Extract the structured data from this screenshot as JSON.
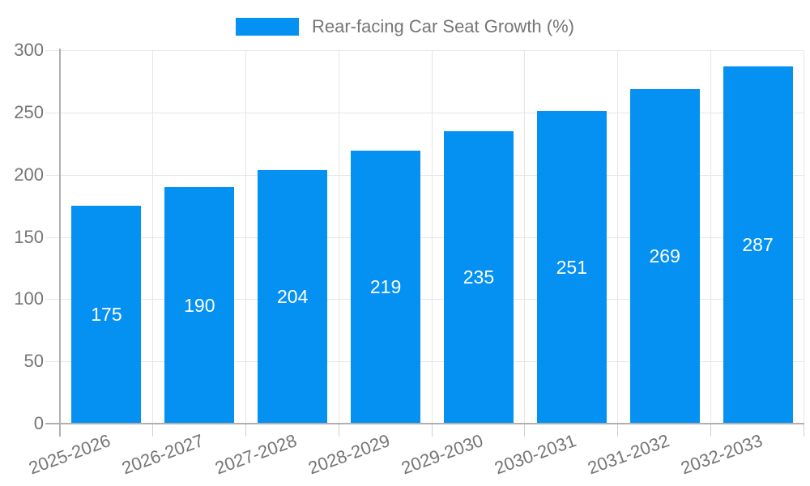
{
  "legend": {
    "label": "Rear-facing Car Seat Growth (%)"
  },
  "chart_data": {
    "type": "bar",
    "title": "Rear-facing Car Seat Growth (%)",
    "categories": [
      "2025-2026",
      "2026-2027",
      "2027-2028",
      "2028-2029",
      "2029-2030",
      "2030-2031",
      "2031-2032",
      "2032-2033"
    ],
    "values": [
      175,
      190,
      204,
      219,
      235,
      251,
      269,
      287
    ],
    "xlabel": "",
    "ylabel": "",
    "ylim": [
      0,
      300
    ],
    "yticks": [
      0,
      50,
      100,
      150,
      200,
      250,
      300
    ],
    "grid": "on",
    "legend_position": "top-center",
    "value_labels": "inside-center",
    "colors": {
      "bar": "#0591f2",
      "grid": "#e6e6e6",
      "axis": "#b0b0b0",
      "text": "#757575",
      "value_label": "#ffffff"
    }
  }
}
